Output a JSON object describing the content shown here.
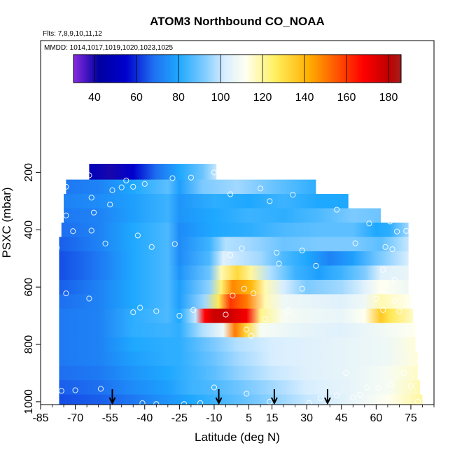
{
  "chart_data": {
    "type": "heatmap",
    "title": "ATOM3 Northbound CO_NOAA",
    "flights_note": "Flts: 7,8,9,10,11,12",
    "dates_note": "MMDD: 1014,1017,1019,1020,1023,1025",
    "xlabel": "Latitude (deg N)",
    "ylabel": "PSXC (mbar)",
    "x_ticks": [
      -85,
      -70,
      -55,
      -40,
      -25,
      -10,
      5,
      15,
      30,
      45,
      60,
      75
    ],
    "y_ticks": [
      200,
      400,
      600,
      800,
      1000
    ],
    "xlim": [
      -85,
      85
    ],
    "ylim": [
      1010,
      -260
    ],
    "colorbar": {
      "range": [
        30,
        186
      ],
      "ticks": [
        40,
        60,
        80,
        100,
        120,
        140,
        160,
        180
      ]
    },
    "colorscale": [
      {
        "value": 30,
        "color": "#8a2be2"
      },
      {
        "value": 42,
        "color": "#0000a0"
      },
      {
        "value": 55,
        "color": "#0000cd"
      },
      {
        "value": 68,
        "color": "#1e6ff0"
      },
      {
        "value": 80,
        "color": "#1ea8ff"
      },
      {
        "value": 92,
        "color": "#7ccaff"
      },
      {
        "value": 102,
        "color": "#d8eeff"
      },
      {
        "value": 112,
        "color": "#fffff0"
      },
      {
        "value": 126,
        "color": "#fff060"
      },
      {
        "value": 142,
        "color": "#ffb000"
      },
      {
        "value": 156,
        "color": "#ff5000"
      },
      {
        "value": 168,
        "color": "#ff0000"
      },
      {
        "value": 180,
        "color": "#c00000"
      },
      {
        "value": 186,
        "color": "#a51d1d"
      }
    ],
    "field": [
      {
        "p": 200,
        "x0": -64,
        "x1": -9,
        "values": [
          [
            -64,
            50
          ],
          [
            -55,
            40
          ],
          [
            -45,
            55
          ],
          [
            -35,
            68
          ],
          [
            -25,
            80
          ],
          [
            -15,
            90
          ],
          [
            -9,
            100
          ]
        ]
      },
      {
        "p": 250,
        "x0": -74,
        "x1": 34,
        "values": [
          [
            -74,
            70
          ],
          [
            -60,
            72
          ],
          [
            -45,
            80
          ],
          [
            -30,
            88
          ],
          [
            -25,
            78
          ],
          [
            -15,
            92
          ],
          [
            0,
            96
          ],
          [
            15,
            90
          ],
          [
            34,
            82
          ]
        ]
      },
      {
        "p": 300,
        "x0": -75,
        "x1": 48,
        "values": [
          [
            -75,
            72
          ],
          [
            -60,
            74
          ],
          [
            -45,
            78
          ],
          [
            -30,
            84
          ],
          [
            -25,
            76
          ],
          [
            -10,
            82
          ],
          [
            5,
            80
          ],
          [
            20,
            84
          ],
          [
            35,
            80
          ],
          [
            48,
            80
          ]
        ]
      },
      {
        "p": 350,
        "x0": -75,
        "x1": 62,
        "values": [
          [
            -75,
            70
          ],
          [
            -60,
            72
          ],
          [
            -45,
            78
          ],
          [
            -30,
            84
          ],
          [
            -25,
            76
          ],
          [
            -10,
            80
          ],
          [
            5,
            84
          ],
          [
            20,
            82
          ],
          [
            35,
            86
          ],
          [
            50,
            92
          ],
          [
            62,
            90
          ]
        ]
      },
      {
        "p": 400,
        "x0": -76,
        "x1": 74,
        "values": [
          [
            -76,
            68
          ],
          [
            -60,
            72
          ],
          [
            -45,
            80
          ],
          [
            -30,
            86
          ],
          [
            -25,
            74
          ],
          [
            -10,
            80
          ],
          [
            5,
            82
          ],
          [
            20,
            86
          ],
          [
            35,
            88
          ],
          [
            50,
            88
          ],
          [
            60,
            80
          ],
          [
            66,
            82
          ],
          [
            74,
            96
          ]
        ]
      },
      {
        "p": 450,
        "x0": -77,
        "x1": 74,
        "values": [
          [
            -77,
            66
          ],
          [
            -60,
            72
          ],
          [
            -45,
            80
          ],
          [
            -30,
            86
          ],
          [
            -25,
            74
          ],
          [
            -12,
            84
          ],
          [
            -5,
            98
          ],
          [
            5,
            96
          ],
          [
            20,
            90
          ],
          [
            35,
            92
          ],
          [
            50,
            92
          ],
          [
            62,
            88
          ],
          [
            74,
            100
          ]
        ]
      },
      {
        "p": 500,
        "x0": -77,
        "x1": 74,
        "values": [
          [
            -77,
            64
          ],
          [
            -60,
            70
          ],
          [
            -45,
            80
          ],
          [
            -30,
            86
          ],
          [
            -25,
            74
          ],
          [
            -12,
            86
          ],
          [
            -6,
            104
          ],
          [
            0,
            100
          ],
          [
            10,
            96
          ],
          [
            20,
            86
          ],
          [
            30,
            80
          ],
          [
            40,
            72
          ],
          [
            50,
            78
          ],
          [
            60,
            90
          ],
          [
            74,
            102
          ]
        ]
      },
      {
        "p": 550,
        "x0": -77,
        "x1": 74,
        "values": [
          [
            -77,
            64
          ],
          [
            -60,
            70
          ],
          [
            -45,
            80
          ],
          [
            -30,
            86
          ],
          [
            -25,
            76
          ],
          [
            -12,
            90
          ],
          [
            -7,
            118
          ],
          [
            0,
            132
          ],
          [
            6,
            120
          ],
          [
            14,
            98
          ],
          [
            25,
            84
          ],
          [
            35,
            78
          ],
          [
            45,
            84
          ],
          [
            55,
            92
          ],
          [
            62,
            104
          ],
          [
            74,
            106
          ]
        ]
      },
      {
        "p": 600,
        "x0": -77,
        "x1": 74,
        "values": [
          [
            -77,
            66
          ],
          [
            -60,
            72
          ],
          [
            -45,
            80
          ],
          [
            -30,
            86
          ],
          [
            -25,
            78
          ],
          [
            -12,
            94
          ],
          [
            -7,
            124
          ],
          [
            -2,
            148
          ],
          [
            6,
            140
          ],
          [
            12,
            118
          ],
          [
            20,
            102
          ],
          [
            30,
            92
          ],
          [
            45,
            96
          ],
          [
            55,
            104
          ],
          [
            62,
            112
          ],
          [
            74,
            108
          ]
        ]
      },
      {
        "p": 650,
        "x0": -77,
        "x1": 75,
        "values": [
          [
            -77,
            68
          ],
          [
            -60,
            72
          ],
          [
            -45,
            80
          ],
          [
            -30,
            86
          ],
          [
            -25,
            78
          ],
          [
            -14,
            96
          ],
          [
            -8,
            128
          ],
          [
            -3,
            160
          ],
          [
            4,
            150
          ],
          [
            12,
            118
          ],
          [
            20,
            108
          ],
          [
            30,
            106
          ],
          [
            45,
            104
          ],
          [
            55,
            108
          ],
          [
            62,
            118
          ],
          [
            75,
            112
          ]
        ]
      },
      {
        "p": 700,
        "x0": -77,
        "x1": 76,
        "values": [
          [
            -77,
            70
          ],
          [
            -60,
            72
          ],
          [
            -45,
            82
          ],
          [
            -30,
            86
          ],
          [
            -25,
            80
          ],
          [
            -18,
            100
          ],
          [
            -14,
            168
          ],
          [
            -10,
            178
          ],
          [
            -4,
            178
          ],
          [
            4,
            170
          ],
          [
            10,
            122
          ],
          [
            20,
            110
          ],
          [
            30,
            108
          ],
          [
            45,
            106
          ],
          [
            55,
            112
          ],
          [
            62,
            136
          ],
          [
            66,
            128
          ],
          [
            76,
            116
          ]
        ]
      },
      {
        "p": 750,
        "x0": -77,
        "x1": 77,
        "values": [
          [
            -77,
            70
          ],
          [
            -60,
            72
          ],
          [
            -45,
            82
          ],
          [
            -30,
            84
          ],
          [
            -25,
            82
          ],
          [
            -15,
            98
          ],
          [
            -6,
            108
          ],
          [
            -1,
            150
          ],
          [
            4,
            132
          ],
          [
            10,
            110
          ],
          [
            25,
            106
          ],
          [
            45,
            104
          ],
          [
            60,
            108
          ],
          [
            77,
            112
          ]
        ]
      },
      {
        "p": 800,
        "x0": -77,
        "x1": 77,
        "values": [
          [
            -77,
            70
          ],
          [
            -60,
            72
          ],
          [
            -45,
            80
          ],
          [
            -30,
            82
          ],
          [
            -25,
            82
          ],
          [
            -10,
            92
          ],
          [
            0,
            98
          ],
          [
            15,
            102
          ],
          [
            30,
            104
          ],
          [
            50,
            106
          ],
          [
            65,
            108
          ],
          [
            77,
            114
          ]
        ]
      },
      {
        "p": 850,
        "x0": -77,
        "x1": 78,
        "values": [
          [
            -77,
            70
          ],
          [
            -60,
            72
          ],
          [
            -45,
            78
          ],
          [
            -30,
            82
          ],
          [
            -25,
            82
          ],
          [
            -10,
            90
          ],
          [
            0,
            96
          ],
          [
            15,
            102
          ],
          [
            30,
            104
          ],
          [
            50,
            106
          ],
          [
            65,
            108
          ],
          [
            78,
            114
          ]
        ]
      },
      {
        "p": 900,
        "x0": -77,
        "x1": 78,
        "values": [
          [
            -77,
            68
          ],
          [
            -60,
            70
          ],
          [
            -45,
            76
          ],
          [
            -30,
            80
          ],
          [
            -20,
            84
          ],
          [
            -10,
            88
          ],
          [
            0,
            94
          ],
          [
            15,
            100
          ],
          [
            30,
            104
          ],
          [
            50,
            106
          ],
          [
            65,
            110
          ],
          [
            78,
            116
          ]
        ]
      },
      {
        "p": 950,
        "x0": -77,
        "x1": 79,
        "values": [
          [
            -77,
            66
          ],
          [
            -60,
            68
          ],
          [
            -45,
            74
          ],
          [
            -30,
            78
          ],
          [
            -20,
            84
          ],
          [
            -10,
            86
          ],
          [
            0,
            90
          ],
          [
            15,
            96
          ],
          [
            30,
            102
          ],
          [
            50,
            106
          ],
          [
            65,
            110
          ],
          [
            79,
            118
          ]
        ]
      },
      {
        "p": 1000,
        "x0": -77,
        "x1": 80,
        "values": [
          [
            -77,
            64
          ],
          [
            -60,
            66
          ],
          [
            -45,
            70
          ],
          [
            -30,
            76
          ],
          [
            -20,
            80
          ],
          [
            -10,
            84
          ],
          [
            0,
            88
          ],
          [
            15,
            94
          ],
          [
            30,
            100
          ],
          [
            50,
            106
          ],
          [
            65,
            112
          ],
          [
            80,
            120
          ]
        ]
      }
    ],
    "sample_points": [
      [
        -64,
        210
      ],
      [
        -48,
        228
      ],
      [
        -28,
        220
      ],
      [
        -20,
        218
      ],
      [
        -10,
        200
      ],
      [
        -74,
        250
      ],
      [
        -54,
        262
      ],
      [
        -50,
        252
      ],
      [
        -45,
        250
      ],
      [
        -40,
        240
      ],
      [
        -63,
        288
      ],
      [
        -3,
        276
      ],
      [
        10,
        256
      ],
      [
        14,
        300
      ],
      [
        24,
        278
      ],
      [
        40,
        245
      ],
      [
        -74,
        350
      ],
      [
        -62,
        340
      ],
      [
        -55,
        312
      ],
      [
        43,
        330
      ],
      [
        -71,
        405
      ],
      [
        -63,
        403
      ],
      [
        -43,
        420
      ],
      [
        -57,
        448
      ],
      [
        -37,
        460
      ],
      [
        -27,
        450
      ],
      [
        -3,
        488
      ],
      [
        17,
        480
      ],
      [
        2,
        465
      ],
      [
        28,
        472
      ],
      [
        51,
        447
      ],
      [
        57,
        378
      ],
      [
        66,
        371
      ],
      [
        69,
        406
      ],
      [
        73,
        404
      ],
      [
        64,
        460
      ],
      [
        67,
        468
      ],
      [
        18,
        518
      ],
      [
        34,
        526
      ],
      [
        63,
        540
      ],
      [
        -78,
        463
      ],
      [
        -74,
        622
      ],
      [
        -64,
        640
      ],
      [
        -45,
        688
      ],
      [
        -42,
        672
      ],
      [
        -35,
        684
      ],
      [
        -25,
        700
      ],
      [
        -19,
        680
      ],
      [
        -5,
        696
      ],
      [
        -2,
        630
      ],
      [
        7,
        622
      ],
      [
        3,
        606
      ],
      [
        12,
        712
      ],
      [
        22,
        682
      ],
      [
        28,
        606
      ],
      [
        60,
        640
      ],
      [
        64,
        594
      ],
      [
        68,
        575
      ],
      [
        68,
        648
      ],
      [
        70,
        685
      ],
      [
        63,
        680
      ],
      [
        6,
        770
      ],
      [
        4,
        748
      ],
      [
        -76,
        962
      ],
      [
        -70,
        960
      ],
      [
        -59,
        955
      ],
      [
        -41,
        1005
      ],
      [
        -35,
        1008
      ],
      [
        -23,
        1008
      ],
      [
        -16,
        1005
      ],
      [
        -10,
        950
      ],
      [
        4,
        972
      ],
      [
        14,
        1000
      ],
      [
        31,
        1005
      ],
      [
        36,
        988
      ],
      [
        43,
        978
      ],
      [
        50,
        985
      ],
      [
        53,
        975
      ],
      [
        56,
        950
      ],
      [
        61,
        951
      ],
      [
        66,
        940
      ],
      [
        72,
        900
      ],
      [
        75,
        945
      ],
      [
        78,
        1000
      ],
      [
        47,
        900
      ]
    ],
    "arrows_lat": [
      -54,
      -8,
      16,
      39
    ],
    "grid": false,
    "legend": "top"
  }
}
